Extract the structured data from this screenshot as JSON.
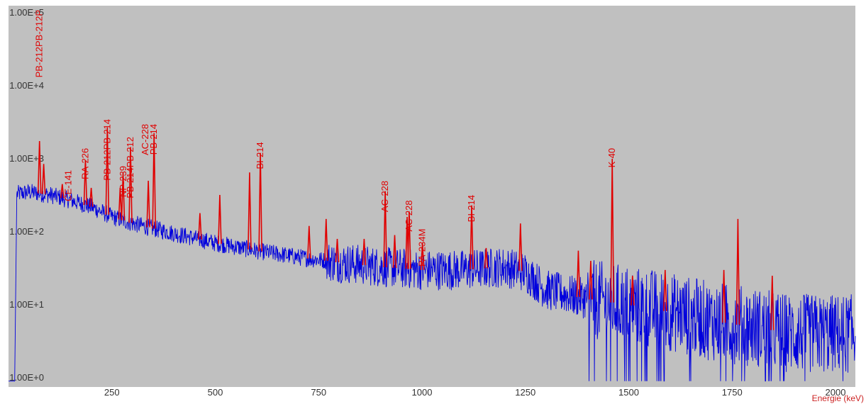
{
  "colors": {
    "window_bg": "#ffffff",
    "plot_bg": "#c0c0c0",
    "spectrum": "#0000dd",
    "peaks": "#e00000",
    "axis_text": "#333333",
    "xlabel": "#cc2222"
  },
  "chart_data": {
    "type": "line",
    "title": "",
    "xlabel": "Energie (keV)",
    "ylabel": "",
    "yscale": "log",
    "xlim": [
      0,
      2048
    ],
    "ylim": [
      1,
      100000
    ],
    "grid": false,
    "legend": "none",
    "x_ticks": [
      250,
      500,
      750,
      1000,
      1250,
      1500,
      1750,
      2000
    ],
    "x_tick_labels": [
      "250",
      "500",
      "750",
      "1000",
      "1250",
      "1500",
      "1750",
      "2000"
    ],
    "y_ticks": [
      1,
      10,
      100,
      1000,
      10000,
      100000
    ],
    "y_tick_labels": [
      "1.00E+0",
      "1.00E+1",
      "1.00E+2",
      "1.00E+3",
      "1.00E+4",
      "1.00E+5"
    ],
    "continuum": {
      "x": [
        0,
        15,
        20,
        50,
        100,
        150,
        200,
        250,
        300,
        400,
        500,
        600,
        700,
        800,
        900,
        1000,
        1100,
        1200,
        1250,
        1300,
        1400,
        1500,
        1600,
        1700,
        1800,
        1900,
        2048
      ],
      "y": [
        0.9,
        0.9,
        330,
        350,
        320,
        270,
        220,
        160,
        130,
        95,
        70,
        55,
        45,
        38,
        33,
        30,
        30,
        33,
        28,
        16,
        12,
        10,
        8,
        6,
        5,
        4,
        4
      ]
    },
    "peaks": [
      {
        "x": 75,
        "y": 1750
      },
      {
        "x": 85,
        "y": 850
      },
      {
        "x": 130,
        "y": 450
      },
      {
        "x": 186,
        "y": 950
      },
      {
        "x": 200,
        "y": 400
      },
      {
        "x": 239,
        "y": 2700
      },
      {
        "x": 270,
        "y": 400
      },
      {
        "x": 277,
        "y": 650
      },
      {
        "x": 295,
        "y": 1450
      },
      {
        "x": 338,
        "y": 500
      },
      {
        "x": 352,
        "y": 2250
      },
      {
        "x": 463,
        "y": 180
      },
      {
        "x": 511,
        "y": 320
      },
      {
        "x": 583,
        "y": 650
      },
      {
        "x": 609,
        "y": 1200
      },
      {
        "x": 727,
        "y": 120
      },
      {
        "x": 768,
        "y": 150
      },
      {
        "x": 795,
        "y": 80
      },
      {
        "x": 860,
        "y": 80
      },
      {
        "x": 911,
        "y": 360
      },
      {
        "x": 934,
        "y": 90
      },
      {
        "x": 964,
        "y": 160
      },
      {
        "x": 969,
        "y": 190
      },
      {
        "x": 1001,
        "y": 70
      },
      {
        "x": 1120,
        "y": 230
      },
      {
        "x": 1155,
        "y": 60
      },
      {
        "x": 1238,
        "y": 130
      },
      {
        "x": 1378,
        "y": 55
      },
      {
        "x": 1408,
        "y": 40
      },
      {
        "x": 1460,
        "y": 1000
      },
      {
        "x": 1509,
        "y": 25
      },
      {
        "x": 1588,
        "y": 30
      },
      {
        "x": 1730,
        "y": 30
      },
      {
        "x": 1764,
        "y": 150
      },
      {
        "x": 1847,
        "y": 25
      }
    ],
    "peak_labels": [
      {
        "text": "PB-212PB-212P",
        "x": 75,
        "top": 110000
      },
      {
        "text": "PB-212PB-214",
        "x": 239,
        "top": 3500
      },
      {
        "text": "PB-214PB-212",
        "x": 295,
        "top": 2000
      },
      {
        "text": "AC-228",
        "x": 331,
        "top": 3000
      },
      {
        "text": "PB-214",
        "x": 352,
        "top": 3000
      },
      {
        "text": "CE-141",
        "x": 145,
        "top": 700
      },
      {
        "text": "RA-226",
        "x": 186,
        "top": 1400
      },
      {
        "text": "NP-239",
        "x": 278,
        "top": 800
      },
      {
        "text": "BI-214",
        "x": 609,
        "top": 1700
      },
      {
        "text": "AC-228",
        "x": 911,
        "top": 500
      },
      {
        "text": "AC-228",
        "x": 969,
        "top": 270
      },
      {
        "text": "PA-234M",
        "x": 1001,
        "top": 110
      },
      {
        "text": "BI-214",
        "x": 1120,
        "top": 320
      },
      {
        "text": "K-40",
        "x": 1460,
        "top": 1400
      }
    ]
  }
}
